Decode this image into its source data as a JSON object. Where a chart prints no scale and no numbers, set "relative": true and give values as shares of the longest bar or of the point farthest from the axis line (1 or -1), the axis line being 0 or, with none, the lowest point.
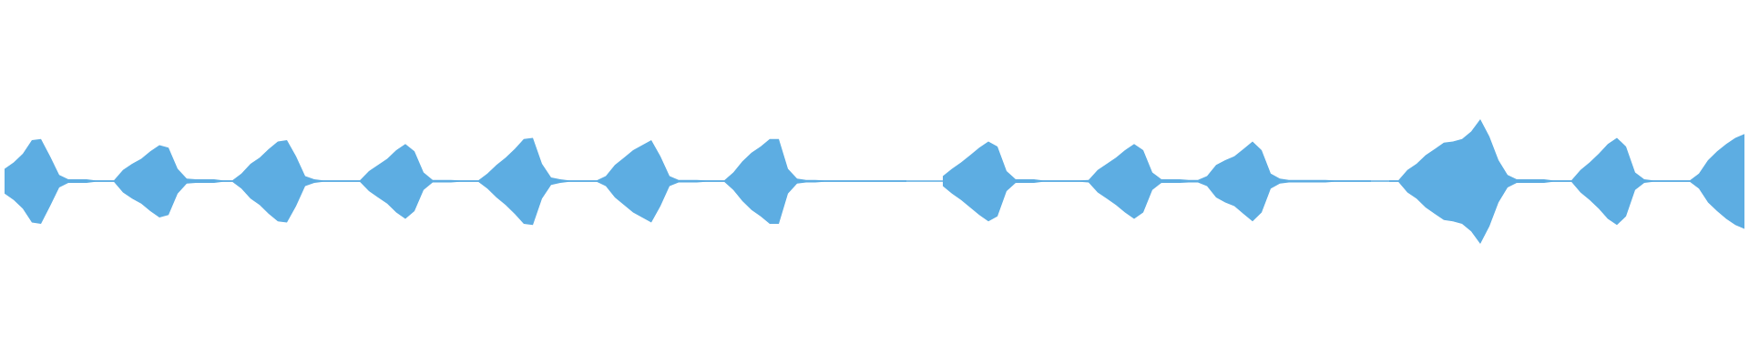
{
  "chart_data": [
    {
      "type": "area",
      "relative": true,
      "color": "#5dade2",
      "categories": [
        null,
        null,
        null,
        null,
        null,
        null,
        null,
        null,
        null,
        null,
        null,
        null,
        null,
        null,
        null,
        null,
        null,
        null,
        null,
        null,
        null,
        null,
        null,
        null,
        null,
        null,
        null,
        null,
        null,
        null,
        null,
        null,
        null,
        null,
        null,
        null,
        null,
        null,
        null,
        null,
        null,
        null,
        null,
        null,
        null,
        null,
        null,
        null,
        null,
        null,
        null,
        null,
        null,
        null,
        null,
        null,
        null,
        null,
        null,
        null,
        null,
        null,
        null,
        null,
        null,
        null,
        null,
        null,
        null,
        null,
        null,
        null,
        null,
        null,
        null,
        null,
        null,
        null,
        null,
        null,
        null,
        null,
        null,
        null,
        null,
        null,
        null,
        null,
        null,
        null,
        null,
        null,
        null,
        null,
        null,
        null,
        null,
        null,
        null,
        null,
        null,
        null,
        null,
        null,
        null,
        null,
        null,
        null,
        null,
        null,
        null,
        null,
        null,
        null,
        null,
        null,
        null,
        null,
        null,
        null,
        null,
        null,
        null,
        null,
        null,
        null,
        null,
        null,
        null,
        null,
        null,
        null,
        null,
        null,
        null,
        null,
        null,
        null,
        null,
        null,
        null,
        null,
        null,
        null,
        null,
        null,
        null,
        null,
        null,
        null,
        null,
        null,
        null,
        null,
        null,
        null,
        null,
        null,
        null,
        null,
        null,
        null,
        null,
        null,
        null,
        null,
        null,
        null,
        null,
        null,
        null,
        null,
        null,
        null,
        null,
        null,
        null,
        null,
        null,
        null,
        null,
        null,
        null,
        null,
        null,
        null,
        null,
        null,
        null,
        null,
        null,
        null
      ],
      "values": [
        0.2,
        0.3,
        0.44,
        0.66,
        0.68,
        0.4,
        0.1,
        0.03,
        0.03,
        0.03,
        0.01,
        0.01,
        0.01,
        0.18,
        0.28,
        0.36,
        0.48,
        0.58,
        0.54,
        0.2,
        0.04,
        0.03,
        0.03,
        0.03,
        0.01,
        0.01,
        0.12,
        0.28,
        0.38,
        0.52,
        0.64,
        0.66,
        0.4,
        0.08,
        0.03,
        0.01,
        0.01,
        0.01,
        0.01,
        0.01,
        0.16,
        0.26,
        0.36,
        0.5,
        0.6,
        0.48,
        0.14,
        0.02,
        0.02,
        0.02,
        0.01,
        0.01,
        0.01,
        0.12,
        0.26,
        0.38,
        0.52,
        0.68,
        0.7,
        0.28,
        0.06,
        0.03,
        0.01,
        0.01,
        0.01,
        0.01,
        0.08,
        0.26,
        0.38,
        0.5,
        0.58,
        0.66,
        0.4,
        0.08,
        0.02,
        0.02,
        0.02,
        0.01,
        0.01,
        0.01,
        0.14,
        0.32,
        0.46,
        0.56,
        0.68,
        0.68,
        0.2,
        0.04,
        0.02,
        0.02,
        0.01,
        0.01,
        0.01,
        0.01,
        0.01,
        0.01,
        0.01,
        0.01,
        0.01,
        0.01,
        null,
        null,
        null,
        0.08,
        0.2,
        0.3,
        0.42,
        0.54,
        0.64,
        0.56,
        0.16,
        0.03,
        0.03,
        0.03,
        0.01,
        0.01,
        0.01,
        0.01,
        0.01,
        0.02,
        0.18,
        0.28,
        0.38,
        0.5,
        0.6,
        0.5,
        0.14,
        0.03,
        0.03,
        0.03,
        0.02,
        0.02,
        0.08,
        0.26,
        0.34,
        0.4,
        0.52,
        0.64,
        0.5,
        0.12,
        0.04,
        0.02,
        0.02,
        0.02,
        0.02,
        0.02,
        0.01,
        0.01,
        0.01,
        0.01,
        0.01,
        null,
        0.01,
        0.01,
        0.18,
        0.28,
        0.42,
        0.52,
        0.62,
        0.64,
        0.68,
        0.8,
        1,
        0.72,
        0.34,
        0.1,
        0.03,
        0.03,
        0.03,
        0.03,
        0.01,
        0.01,
        0.01,
        0.18,
        0.3,
        0.44,
        0.6,
        0.7,
        0.56,
        0.14,
        0.03,
        0.01,
        0.01,
        0.01,
        0.01,
        0.01,
        0.12,
        0.34,
        0.48,
        0.6,
        0.7,
        0.76
      ]
    },
    {
      "type": "area",
      "relative": true,
      "color": "#5dade2",
      "categories": [
        null,
        null,
        null,
        null,
        null,
        null,
        null,
        null,
        null,
        null,
        null,
        null,
        null,
        null,
        null,
        null,
        null,
        null,
        null,
        null,
        null,
        null,
        null,
        null,
        null,
        null,
        null,
        null,
        null,
        null,
        null,
        null,
        null,
        null,
        null,
        null,
        null,
        null,
        null,
        null,
        null,
        null,
        null,
        null,
        null,
        null,
        null,
        null,
        null,
        null,
        null,
        null,
        null,
        null,
        null,
        null,
        null,
        null,
        null,
        null,
        null,
        null,
        null,
        null,
        null,
        null,
        null,
        null,
        null,
        null,
        null,
        null,
        null,
        null,
        null,
        null,
        null,
        null,
        null,
        null,
        null,
        null,
        null,
        null,
        null,
        null,
        null,
        null,
        null,
        null,
        null,
        null,
        null,
        null,
        null,
        null,
        null,
        null,
        null,
        null,
        null,
        null,
        null,
        null,
        null,
        null,
        null,
        null,
        null,
        null,
        null,
        null,
        null,
        null,
        null,
        null,
        null,
        null,
        null,
        null,
        null,
        null,
        null,
        null,
        null,
        null,
        null,
        null,
        null,
        null,
        null,
        null,
        null,
        null,
        null,
        null,
        null,
        null,
        null,
        null,
        null,
        null,
        null,
        null,
        null,
        null,
        null,
        null,
        null,
        null,
        null,
        null,
        null,
        null,
        null,
        null,
        null,
        null,
        null,
        null,
        null,
        null,
        null,
        null,
        null,
        null,
        null,
        null,
        null,
        null,
        null,
        null,
        null,
        null,
        null,
        null,
        null,
        null,
        null,
        null,
        null,
        null,
        null,
        null,
        null,
        null,
        null,
        null,
        null,
        null,
        null,
        null
      ],
      "values": [
        -0.2,
        -0.3,
        -0.44,
        -0.66,
        -0.68,
        -0.4,
        -0.1,
        -0.03,
        -0.03,
        -0.03,
        -0.01,
        -0.01,
        -0.01,
        -0.18,
        -0.28,
        -0.36,
        -0.48,
        -0.58,
        -0.54,
        -0.2,
        -0.04,
        -0.03,
        -0.03,
        -0.03,
        -0.01,
        -0.01,
        -0.12,
        -0.28,
        -0.38,
        -0.52,
        -0.64,
        -0.66,
        -0.4,
        -0.08,
        -0.03,
        -0.01,
        -0.01,
        -0.01,
        -0.01,
        -0.01,
        -0.16,
        -0.26,
        -0.36,
        -0.5,
        -0.6,
        -0.48,
        -0.14,
        -0.02,
        -0.02,
        -0.02,
        -0.01,
        -0.01,
        -0.01,
        -0.12,
        -0.26,
        -0.38,
        -0.52,
        -0.68,
        -0.7,
        -0.28,
        -0.06,
        -0.03,
        -0.01,
        -0.01,
        -0.01,
        -0.01,
        -0.08,
        -0.26,
        -0.38,
        -0.5,
        -0.58,
        -0.66,
        -0.4,
        -0.08,
        -0.02,
        -0.02,
        -0.02,
        -0.01,
        -0.01,
        -0.01,
        -0.14,
        -0.32,
        -0.46,
        -0.56,
        -0.68,
        -0.68,
        -0.2,
        -0.04,
        -0.02,
        -0.02,
        -0.01,
        -0.01,
        -0.01,
        -0.01,
        -0.01,
        -0.01,
        -0.01,
        -0.01,
        -0.01,
        -0.01,
        null,
        null,
        null,
        -0.08,
        -0.2,
        -0.3,
        -0.42,
        -0.54,
        -0.64,
        -0.56,
        -0.16,
        -0.03,
        -0.03,
        -0.03,
        -0.01,
        -0.01,
        -0.01,
        -0.01,
        -0.01,
        -0.02,
        -0.18,
        -0.28,
        -0.38,
        -0.5,
        -0.6,
        -0.5,
        -0.14,
        -0.03,
        -0.03,
        -0.03,
        -0.02,
        -0.02,
        -0.08,
        -0.26,
        -0.34,
        -0.4,
        -0.52,
        -0.64,
        -0.5,
        -0.12,
        -0.04,
        -0.02,
        -0.02,
        -0.02,
        -0.02,
        -0.02,
        -0.01,
        -0.01,
        -0.01,
        -0.01,
        -0.01,
        null,
        -0.01,
        -0.01,
        -0.18,
        -0.28,
        -0.42,
        -0.52,
        -0.62,
        -0.64,
        -0.68,
        -0.8,
        -1,
        -0.72,
        -0.34,
        -0.1,
        -0.03,
        -0.03,
        -0.03,
        -0.03,
        -0.01,
        -0.01,
        -0.01,
        -0.18,
        -0.3,
        -0.44,
        -0.6,
        -0.7,
        -0.56,
        -0.14,
        -0.03,
        -0.01,
        -0.01,
        -0.01,
        -0.01,
        -0.01,
        -0.12,
        -0.34,
        -0.48,
        -0.6,
        -0.7,
        -0.76
      ]
    }
  ]
}
